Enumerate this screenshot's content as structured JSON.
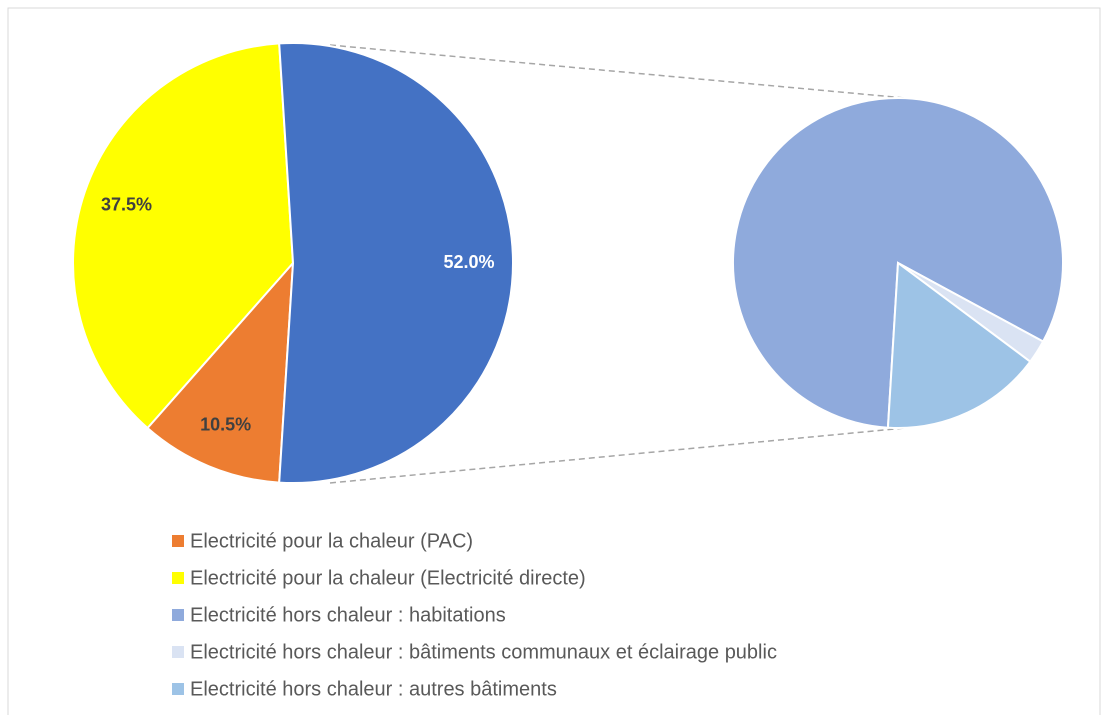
{
  "chart_data": {
    "type": "pie-of-pie",
    "main_pie": {
      "values": [
        10.5,
        37.5,
        52.0
      ],
      "value_labels": [
        "10.5%",
        "37.5%",
        "52.0%"
      ],
      "colors": [
        "#ed7d31",
        "#ffff00",
        "#4472c4"
      ],
      "label_colors": [
        "#404040",
        "#404040",
        "#ffffff"
      ]
    },
    "secondary_pie": {
      "values": [
        42.6,
        1.2,
        8.2
      ],
      "colors": [
        "#8faadc",
        "#dae3f3",
        "#9dc3e6"
      ]
    },
    "legend": {
      "labels": [
        "Electricité pour la chaleur (PAC)",
        "Electricité pour la chaleur (Electricité directe)",
        "Electricité hors chaleur : habitations",
        "Electricité hors chaleur : bâtiments communaux et éclairage public",
        "Electricité hors chaleur : autres bâtiments"
      ],
      "colors": [
        "#ed7d31",
        "#ffff00",
        "#8faadc",
        "#dae3f3",
        "#9dc3e6"
      ]
    }
  }
}
